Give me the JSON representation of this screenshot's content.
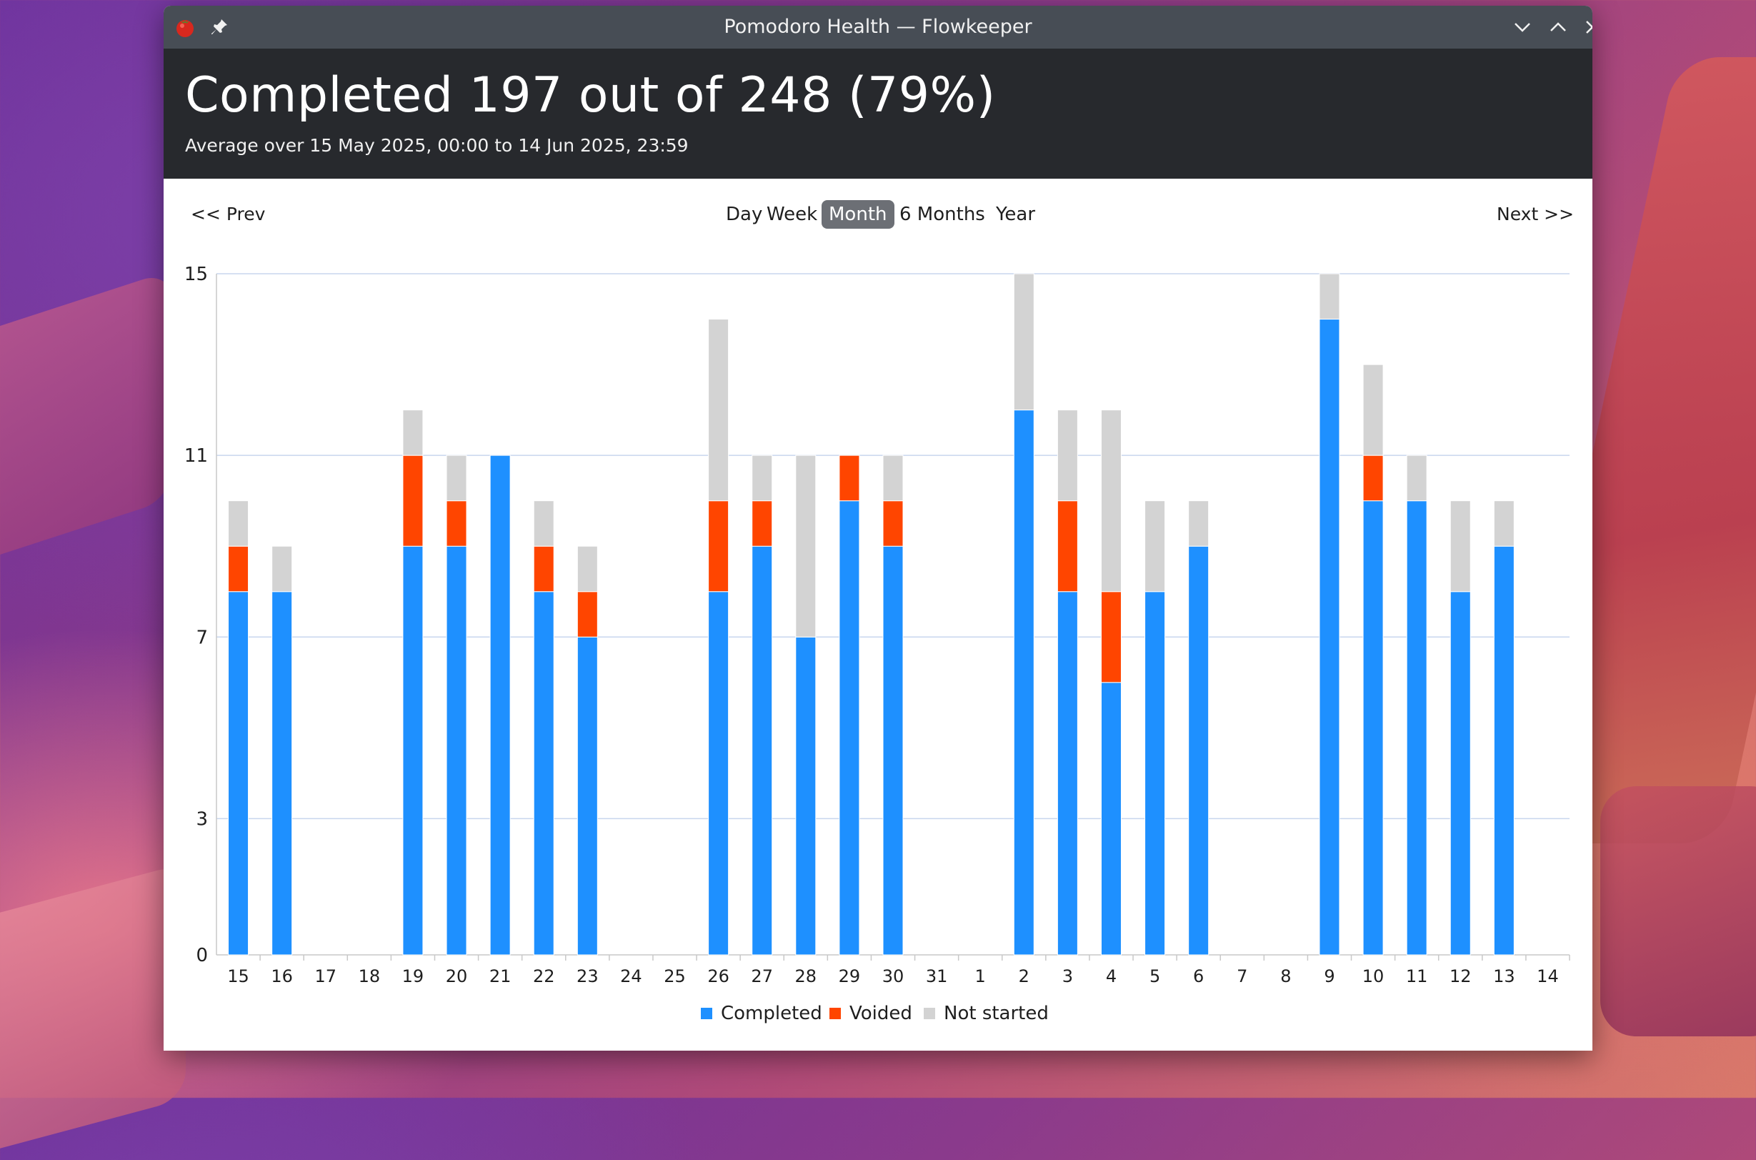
{
  "window": {
    "title": "Pomodoro Health — Flowkeeper",
    "app_icon": "tomato-icon",
    "pin_icon": "pin-icon",
    "controls": [
      "minimize-chevron-down-icon",
      "maximize-chevron-up-icon",
      "close-icon"
    ]
  },
  "header": {
    "summary": "Completed 197 out of 248 (79%)",
    "range": "Average over 15 May 2025, 00:00 to 14 Jun 2025, 23:59"
  },
  "nav": {
    "prev": "<< Prev",
    "next": "Next >>",
    "periods": [
      "Day",
      "Week",
      "Month",
      "6 Months",
      "Year"
    ],
    "selected": "Month"
  },
  "colors": {
    "completed": "#1e90ff",
    "voided": "#ff4500",
    "not_started": "#d3d3d3",
    "selected_period_bg": "#6c6f75",
    "header_bg": "#27292d",
    "titlebar_bg": "#474d55"
  },
  "chart_data": {
    "type": "bar",
    "stacked": true,
    "categories": [
      "15",
      "16",
      "17",
      "18",
      "19",
      "20",
      "21",
      "22",
      "23",
      "24",
      "25",
      "26",
      "27",
      "28",
      "29",
      "30",
      "31",
      "1",
      "2",
      "3",
      "4",
      "5",
      "6",
      "7",
      "8",
      "9",
      "10",
      "11",
      "12",
      "13",
      "14"
    ],
    "series": [
      {
        "name": "Completed",
        "color": "#1e90ff",
        "values": [
          8,
          8,
          0,
          0,
          9,
          9,
          11,
          8,
          7,
          0,
          0,
          8,
          9,
          7,
          10,
          9,
          0,
          0,
          12,
          8,
          6,
          8,
          9,
          0,
          0,
          14,
          10,
          10,
          8,
          9,
          0
        ]
      },
      {
        "name": "Voided",
        "color": "#ff4500",
        "values": [
          1,
          0,
          0,
          0,
          2,
          1,
          0,
          1,
          1,
          0,
          0,
          2,
          1,
          0,
          1,
          1,
          0,
          0,
          0,
          2,
          2,
          0,
          0,
          0,
          0,
          0,
          1,
          0,
          0,
          0,
          0
        ]
      },
      {
        "name": "Not started",
        "color": "#d3d3d3",
        "values": [
          1,
          1,
          0,
          0,
          1,
          1,
          0,
          1,
          1,
          0,
          0,
          4,
          1,
          4,
          0,
          1,
          0,
          0,
          3,
          2,
          4,
          2,
          1,
          0,
          0,
          1,
          2,
          1,
          2,
          1,
          0
        ]
      }
    ],
    "y_ticks": [
      "0",
      "3",
      "7",
      "11",
      "15"
    ],
    "ylim": [
      0,
      15
    ],
    "grid": true,
    "legend_position": "bottom-center",
    "title": "",
    "xlabel": "",
    "ylabel": ""
  }
}
